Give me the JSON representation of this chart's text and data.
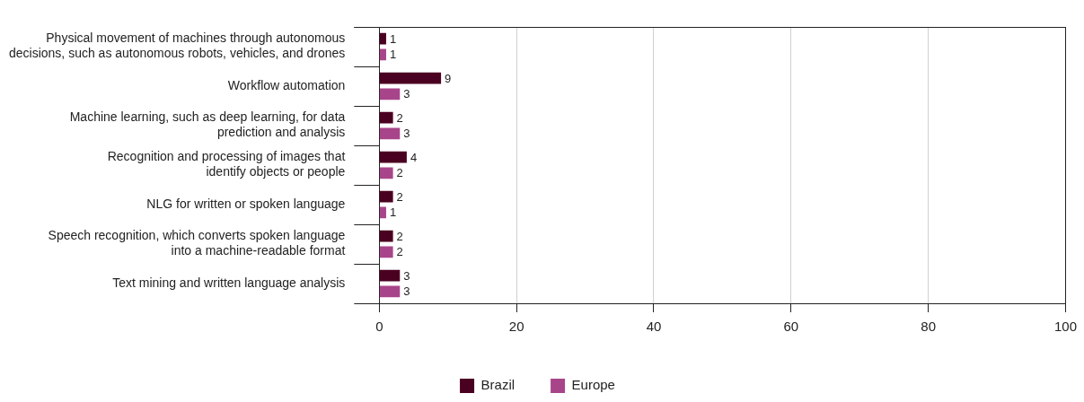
{
  "chart_data": {
    "type": "bar",
    "orientation": "horizontal",
    "categories": [
      "Physical movement of machines through autonomous\ndecisions, such as autonomous robots, vehicles, and drones",
      "Workflow automation",
      "Machine learning, such as deep learning, for data\nprediction and analysis",
      "Recognition and processing of images that\nidentify objects or people",
      "NLG for written or spoken language",
      "Speech recognition, which converts spoken language\ninto a machine-readable format",
      "Text mining and written language analysis"
    ],
    "series": [
      {
        "name": "Brazil",
        "color": "#4a0020",
        "values": [
          1,
          9,
          2,
          4,
          2,
          2,
          3
        ]
      },
      {
        "name": "Europe",
        "color": "#a8458a",
        "values": [
          1,
          3,
          3,
          2,
          1,
          2,
          3
        ]
      }
    ],
    "xlim": [
      0,
      100
    ],
    "xticks": [
      0,
      20,
      40,
      60,
      80,
      100
    ],
    "grid": "x",
    "legend": "bottom",
    "data_labels": true
  }
}
